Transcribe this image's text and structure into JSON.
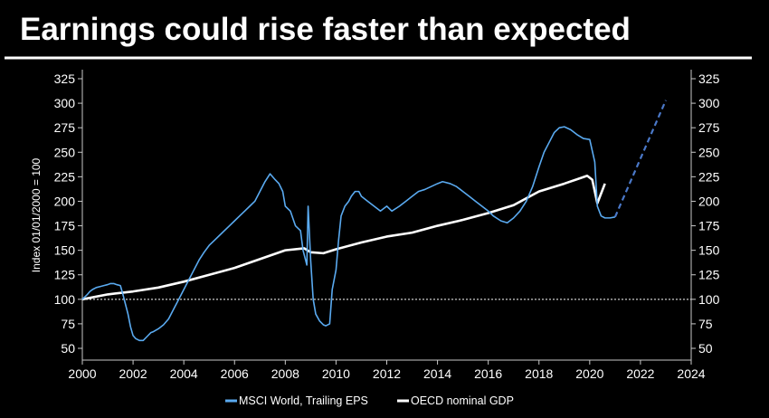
{
  "chart_data": {
    "type": "line",
    "title": "Earnings could rise faster than expected",
    "xlabel": "",
    "ylabel": "Index 01/01/2000 = 100",
    "xlim": [
      2000,
      2024
    ],
    "ylim": [
      40,
      335
    ],
    "x_ticks": [
      "2000",
      "2002",
      "2004",
      "2006",
      "2008",
      "2010",
      "2012",
      "2014",
      "2016",
      "2018",
      "2020",
      "2022",
      "2024"
    ],
    "y_ticks": [
      "50",
      "75",
      "100",
      "125",
      "150",
      "175",
      "200",
      "225",
      "250",
      "275",
      "300",
      "325"
    ],
    "reference_line": 100,
    "colors": {
      "background": "#000000",
      "eps": "#5aaaf0",
      "gdp": "#ffffff",
      "projection": "#4a78c8",
      "reference": "#ffffff"
    },
    "series": [
      {
        "name": "MSCI World, Trailing EPS",
        "style": "solid",
        "x": [
          2000,
          2000.2,
          2000.3,
          2000.4,
          2000.55,
          2000.7,
          2000.85,
          2001,
          2001.1,
          2001.25,
          2001.35,
          2001.5,
          2001.6,
          2001.7,
          2001.8,
          2001.9,
          2002,
          2002.1,
          2002.25,
          2002.4,
          2002.55,
          2002.7,
          2002.8,
          2003,
          2003.2,
          2003.4,
          2003.6,
          2003.8,
          2004,
          2004.2,
          2004.4,
          2004.6,
          2004.8,
          2005,
          2005.2,
          2005.4,
          2005.6,
          2005.8,
          2006,
          2006.2,
          2006.4,
          2006.6,
          2006.8,
          2007,
          2007.2,
          2007.4,
          2007.6,
          2007.75,
          2007.9,
          2008,
          2008.2,
          2008.4,
          2008.6,
          2008.7,
          2008.8,
          2008.85,
          2008.9,
          2009,
          2009.1,
          2009.2,
          2009.35,
          2009.5,
          2009.6,
          2009.75,
          2009.85,
          2010,
          2010.1,
          2010.2,
          2010.35,
          2010.5,
          2010.6,
          2010.75,
          2010.9,
          2011,
          2011.25,
          2011.5,
          2011.75,
          2012,
          2012.2,
          2012.5,
          2012.75,
          2013,
          2013.25,
          2013.5,
          2013.75,
          2014,
          2014.2,
          2014.5,
          2014.75,
          2015,
          2015.25,
          2015.5,
          2015.75,
          2016,
          2016.2,
          2016.5,
          2016.75,
          2017,
          2017.25,
          2017.5,
          2017.75,
          2018,
          2018.2,
          2018.4,
          2018.6,
          2018.8,
          2019,
          2019.25,
          2019.5,
          2019.75,
          2020,
          2020.2,
          2020.3,
          2020.45,
          2020.6,
          2020.8,
          2021
        ],
        "values": [
          100,
          105,
          108,
          110,
          112,
          113,
          114,
          115,
          116,
          116,
          115,
          114,
          105,
          95,
          85,
          72,
          63,
          60,
          58,
          58,
          62,
          66,
          67,
          70,
          74,
          80,
          90,
          100,
          110,
          120,
          130,
          140,
          148,
          155,
          160,
          165,
          170,
          175,
          180,
          185,
          190,
          195,
          200,
          210,
          220,
          228,
          222,
          218,
          210,
          195,
          190,
          175,
          170,
          150,
          140,
          135,
          195,
          140,
          100,
          85,
          78,
          74,
          73,
          75,
          110,
          130,
          160,
          185,
          195,
          200,
          205,
          210,
          210,
          205,
          200,
          195,
          190,
          195,
          190,
          195,
          200,
          205,
          210,
          212,
          215,
          218,
          220,
          218,
          215,
          210,
          205,
          200,
          195,
          190,
          185,
          180,
          178,
          183,
          190,
          200,
          215,
          235,
          250,
          260,
          270,
          275,
          276,
          273,
          268,
          264,
          263,
          240,
          195,
          185,
          183,
          183,
          184
        ]
      },
      {
        "name": "OECD nominal GDP",
        "style": "solid",
        "x": [
          2000,
          2001,
          2002,
          2003,
          2004,
          2005,
          2006,
          2007,
          2008,
          2008.75,
          2009,
          2009.5,
          2010,
          2011,
          2012,
          2013,
          2014,
          2015,
          2016,
          2017,
          2018,
          2019,
          2019.9,
          2020.1,
          2020.3,
          2020.6
        ],
        "values": [
          100,
          105,
          108,
          112,
          118,
          125,
          132,
          141,
          150,
          152,
          148,
          147,
          151,
          158,
          164,
          168,
          175,
          181,
          188,
          196,
          210,
          218,
          226,
          222,
          198,
          218
        ]
      },
      {
        "name": "Projection",
        "style": "dashed",
        "x": [
          2021,
          2023
        ],
        "values": [
          184,
          303
        ]
      }
    ],
    "legend": {
      "position": "bottom-center",
      "entries": [
        "MSCI World, Trailing EPS",
        "OECD nominal GDP"
      ]
    }
  }
}
